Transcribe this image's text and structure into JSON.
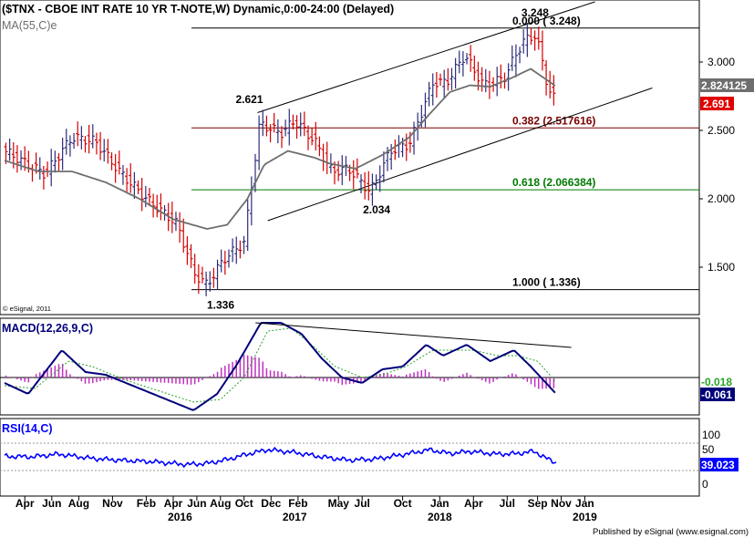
{
  "chart_data": [
    {
      "type": "candlestick",
      "panel": "price",
      "title": "($TNX - CBOE INT RATE 10 YR T-NOTE,W) Dynamic,0:00-24:00 (Delayed)",
      "ma_label": "MA(55,C)e",
      "copyright": "© eSignal, 2011",
      "ylim": [
        1.2,
        3.4
      ],
      "yticks": [
        {
          "v": 3.0,
          "label": "3.000"
        },
        {
          "v": 2.5,
          "label": "2.500"
        },
        {
          "v": 2.0,
          "label": "2.000"
        },
        {
          "v": 1.5,
          "label": "1.500"
        }
      ],
      "price_anchors": [
        [
          0,
          2.35
        ],
        [
          0.6,
          2.18
        ],
        [
          1.0,
          2.45
        ],
        [
          1.35,
          2.42
        ],
        [
          1.7,
          2.2
        ],
        [
          2.1,
          2.0
        ],
        [
          2.55,
          1.82
        ],
        [
          2.82,
          1.45
        ],
        [
          3.0,
          1.37
        ],
        [
          3.25,
          1.56
        ],
        [
          3.55,
          1.68
        ],
        [
          3.78,
          2.55
        ],
        [
          4.1,
          2.48
        ],
        [
          4.3,
          2.57
        ],
        [
          4.6,
          2.42
        ],
        [
          4.85,
          2.2
        ],
        [
          5.1,
          2.22
        ],
        [
          5.42,
          2.05
        ],
        [
          5.72,
          2.35
        ],
        [
          6.0,
          2.4
        ],
        [
          6.35,
          2.85
        ],
        [
          6.55,
          2.85
        ],
        [
          6.82,
          3.05
        ],
        [
          7.1,
          2.83
        ],
        [
          7.4,
          2.88
        ],
        [
          7.68,
          3.15
        ],
        [
          7.88,
          3.2
        ],
        [
          8.05,
          2.82
        ],
        [
          8.18,
          2.7
        ]
      ],
      "ma_anchors": [
        [
          0,
          2.28
        ],
        [
          0.5,
          2.2
        ],
        [
          1.0,
          2.2
        ],
        [
          1.5,
          2.12
        ],
        [
          2.0,
          2.0
        ],
        [
          2.5,
          1.85
        ],
        [
          3.0,
          1.78
        ],
        [
          3.3,
          1.81
        ],
        [
          3.6,
          2.0
        ],
        [
          3.85,
          2.25
        ],
        [
          4.2,
          2.35
        ],
        [
          4.6,
          2.3
        ],
        [
          4.8,
          2.26
        ],
        [
          5.2,
          2.22
        ],
        [
          5.6,
          2.32
        ],
        [
          6.0,
          2.45
        ],
        [
          6.3,
          2.62
        ],
        [
          6.6,
          2.78
        ],
        [
          6.9,
          2.83
        ],
        [
          7.2,
          2.82
        ],
        [
          7.5,
          2.88
        ],
        [
          7.8,
          2.95
        ],
        [
          8.18,
          2.82
        ]
      ],
      "last_ma": "2.824125",
      "last_price": "2.691",
      "trendlines": [
        {
          "role": "upper-channel",
          "from": [
            3.75,
            2.63
          ],
          "to": [
            8.75,
            3.44
          ]
        },
        {
          "role": "lower-channel",
          "from": [
            3.9,
            1.84
          ],
          "to": [
            9.6,
            2.81
          ]
        }
      ],
      "fib_levels": [
        {
          "label": "0.000 ( 3.248)",
          "value": 3.248
        },
        {
          "label": "0.382 (2.517616)",
          "value": 2.518
        },
        {
          "label": "0.618 (2.066384)",
          "value": 2.066
        },
        {
          "label": "1.000 ( 1.336)",
          "value": 1.336
        }
      ],
      "annotations": [
        {
          "text": "2.621",
          "x": 3.75,
          "y": 2.621
        },
        {
          "text": "3.248",
          "x": 7.85,
          "y": 3.248
        },
        {
          "text": "2.034",
          "x": 5.42,
          "y": 2.034
        },
        {
          "text": "1.336",
          "x": 3.0,
          "y": 1.336
        }
      ]
    },
    {
      "type": "line",
      "panel": "macd",
      "title": "MACD(12,26,9,C)",
      "macd_anchors": [
        [
          0,
          -0.02
        ],
        [
          0.35,
          -0.06
        ],
        [
          0.85,
          0.1
        ],
        [
          1.2,
          0.02
        ],
        [
          1.5,
          0.01
        ],
        [
          1.9,
          -0.03
        ],
        [
          2.3,
          -0.07
        ],
        [
          2.8,
          -0.12
        ],
        [
          3.15,
          -0.06
        ],
        [
          3.45,
          0.05
        ],
        [
          3.8,
          0.2
        ],
        [
          4.1,
          0.2
        ],
        [
          4.4,
          0.16
        ],
        [
          4.7,
          0.07
        ],
        [
          5.0,
          0.0
        ],
        [
          5.3,
          -0.02
        ],
        [
          5.6,
          0.03
        ],
        [
          5.9,
          0.04
        ],
        [
          6.25,
          0.12
        ],
        [
          6.5,
          0.08
        ],
        [
          6.85,
          0.12
        ],
        [
          7.2,
          0.06
        ],
        [
          7.55,
          0.1
        ],
        [
          7.8,
          0.04
        ],
        [
          8.18,
          -0.061
        ]
      ],
      "signal_anchors": [
        [
          0,
          -0.03
        ],
        [
          0.45,
          -0.04
        ],
        [
          0.95,
          0.06
        ],
        [
          1.3,
          0.04
        ],
        [
          1.8,
          -0.01
        ],
        [
          2.3,
          -0.05
        ],
        [
          2.8,
          -0.09
        ],
        [
          3.2,
          -0.08
        ],
        [
          3.55,
          0.0
        ],
        [
          3.9,
          0.17
        ],
        [
          4.25,
          0.18
        ],
        [
          4.55,
          0.12
        ],
        [
          4.9,
          0.04
        ],
        [
          5.3,
          0.0
        ],
        [
          5.6,
          0.01
        ],
        [
          5.95,
          0.04
        ],
        [
          6.35,
          0.1
        ],
        [
          6.6,
          0.1
        ],
        [
          6.95,
          0.1
        ],
        [
          7.3,
          0.08
        ],
        [
          7.6,
          0.08
        ],
        [
          7.9,
          0.06
        ],
        [
          8.18,
          -0.018
        ]
      ],
      "trendline": {
        "from": [
          3.72,
          0.2
        ],
        "to": [
          8.4,
          0.11
        ]
      },
      "last_signal": "-0.018",
      "last_macd": "-0.061"
    },
    {
      "type": "line",
      "panel": "rsi",
      "title": "RSI(14,C)",
      "yticks": [
        {
          "v": 100,
          "label": "100"
        },
        {
          "v": 50,
          "label": "50"
        },
        {
          "v": 0,
          "label": "0"
        }
      ],
      "ylim": [
        0,
        100
      ],
      "rsi_anchors": [
        [
          0,
          51
        ],
        [
          0.4,
          50
        ],
        [
          0.8,
          55
        ],
        [
          1.3,
          47
        ],
        [
          1.7,
          44
        ],
        [
          2.2,
          41
        ],
        [
          2.7,
          36
        ],
        [
          3.0,
          38
        ],
        [
          3.3,
          45
        ],
        [
          3.6,
          55
        ],
        [
          3.9,
          63
        ],
        [
          4.3,
          58
        ],
        [
          4.7,
          50
        ],
        [
          5.1,
          44
        ],
        [
          5.5,
          46
        ],
        [
          5.9,
          54
        ],
        [
          6.3,
          63
        ],
        [
          6.6,
          56
        ],
        [
          6.9,
          60
        ],
        [
          7.3,
          55
        ],
        [
          7.6,
          56
        ],
        [
          7.85,
          60
        ],
        [
          8.05,
          46
        ],
        [
          8.18,
          39
        ]
      ],
      "last_rsi": "39.023",
      "x_months": [
        {
          "label": "Apr",
          "x": 0.3
        },
        {
          "label": "Jun",
          "x": 0.7
        },
        {
          "label": "Aug",
          "x": 1.1
        },
        {
          "label": "Nov",
          "x": 1.6
        },
        {
          "label": "Feb",
          "x": 2.1
        },
        {
          "label": "Apr",
          "x": 2.5
        },
        {
          "label": "Jun",
          "x": 2.85
        },
        {
          "label": "Aug",
          "x": 3.2
        },
        {
          "label": "Oct",
          "x": 3.55
        },
        {
          "label": "Dec",
          "x": 3.95
        },
        {
          "label": "Feb",
          "x": 4.35
        },
        {
          "label": "May",
          "x": 4.95
        },
        {
          "label": "Jul",
          "x": 5.3
        },
        {
          "label": "Oct",
          "x": 5.9
        },
        {
          "label": "Jan",
          "x": 6.45
        },
        {
          "label": "Apr",
          "x": 6.95
        },
        {
          "label": "Jul",
          "x": 7.45
        },
        {
          "label": "Sep",
          "x": 7.9
        },
        {
          "label": "Nov",
          "x": 8.25
        },
        {
          "label": "Jan",
          "x": 8.6
        }
      ],
      "x_years": [
        {
          "label": "2016",
          "x": 2.6
        },
        {
          "label": "2017",
          "x": 4.3
        },
        {
          "label": "2018",
          "x": 6.45
        },
        {
          "label": "2019",
          "x": 8.6
        }
      ]
    }
  ],
  "footer": {
    "text": "Published by eSignal (www.esignal.com)"
  }
}
